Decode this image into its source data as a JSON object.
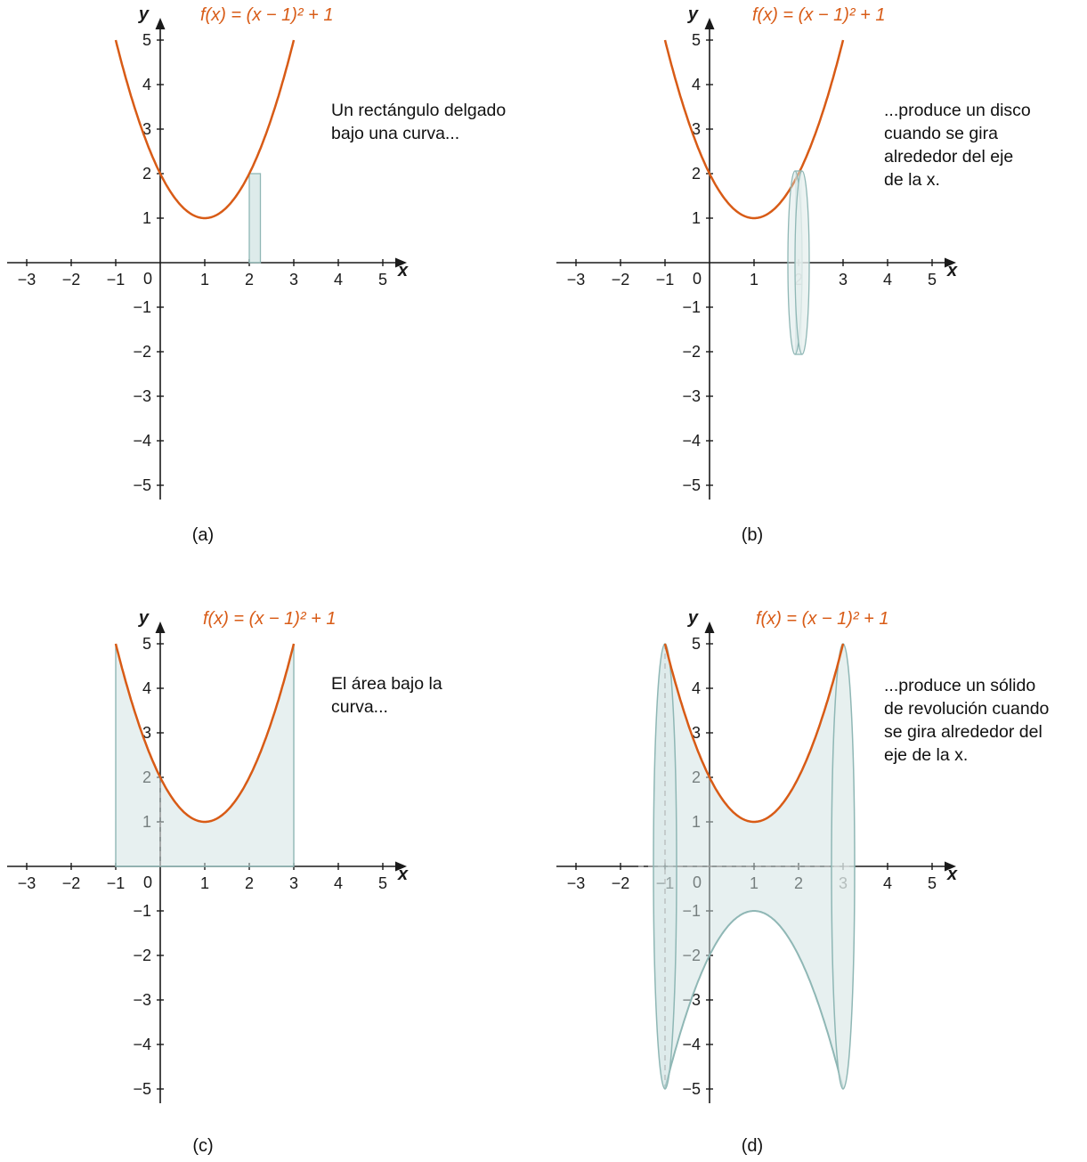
{
  "colors": {
    "curve": "#d85b16",
    "region_fill": "#cfe2e1",
    "region_stroke": "#8fb7b5",
    "disk_face": "#e7f0ef",
    "axis": "#1a1a1a",
    "dashed": "#a8a8a8",
    "text": "#1a1a1a"
  },
  "chart_data": [
    {
      "type": "line",
      "caption": "(a)",
      "title": "f(x) = (x − 1)² + 1",
      "annotation": "Un rectángulo delgado\nbajo una curva...",
      "function": {
        "expression": "f(x) = (x − 1)² + 1",
        "vertex_h": 1,
        "vertex_k": 1,
        "domain": [
          -1,
          3
        ]
      },
      "axes": {
        "xlabel": "x",
        "ylabel": "y",
        "xlim": [
          -3,
          5
        ],
        "ylim": [
          -5,
          5
        ],
        "xticks": [
          -3,
          -2,
          -1,
          1,
          2,
          3,
          4,
          5
        ],
        "yticks": [
          -5,
          -4,
          -3,
          -2,
          -1,
          1,
          2,
          3,
          4,
          5
        ]
      },
      "elements": {
        "rect_slice": {
          "x": 2,
          "width": 0.25,
          "y0": 0,
          "y1": 2
        }
      }
    },
    {
      "type": "line",
      "caption": "(b)",
      "title": "f(x) = (x − 1)² + 1",
      "annotation": "...produce un disco\ncuando se gira\nalrededor del eje\nde la x.",
      "function": {
        "expression": "f(x) = (x − 1)² + 1",
        "vertex_h": 1,
        "vertex_k": 1,
        "domain": [
          -1,
          3
        ]
      },
      "axes": {
        "xlabel": "x",
        "ylabel": "y",
        "xlim": [
          -3,
          5
        ],
        "ylim": [
          -5,
          5
        ],
        "xticks": [
          -3,
          -2,
          -1,
          1,
          2,
          3,
          4,
          5
        ],
        "yticks": [
          -5,
          -4,
          -3,
          -2,
          -1,
          1,
          2,
          3,
          4,
          5
        ]
      },
      "elements": {
        "disk": {
          "x": 2,
          "radius": 2
        }
      }
    },
    {
      "type": "line",
      "caption": "(c)",
      "title": "f(x) = (x − 1)² + 1",
      "annotation": "El área bajo la\ncurva...",
      "function": {
        "expression": "f(x) = (x − 1)² + 1",
        "vertex_h": 1,
        "vertex_k": 1,
        "domain": [
          -1,
          3
        ]
      },
      "axes": {
        "xlabel": "x",
        "ylabel": "y",
        "xlim": [
          -3,
          5
        ],
        "ylim": [
          -5,
          5
        ],
        "xticks": [
          -3,
          -2,
          -1,
          1,
          2,
          3,
          4,
          5
        ],
        "yticks": [
          -5,
          -4,
          -3,
          -2,
          -1,
          1,
          2,
          3,
          4,
          5
        ]
      },
      "elements": {
        "area": {
          "from": -1,
          "to": 3
        },
        "dashed_vertical": {
          "x": 0,
          "y0": 0,
          "y1": 2
        }
      }
    },
    {
      "type": "line",
      "caption": "(d)",
      "title": "f(x) = (x − 1)² + 1",
      "annotation": "...produce un sólido\nde revolución cuando\nse gira alrededor del\neje de la x.",
      "function": {
        "expression": "f(x) = (x − 1)² + 1",
        "vertex_h": 1,
        "vertex_k": 1,
        "domain": [
          -1,
          3
        ]
      },
      "axes": {
        "xlabel": "x",
        "ylabel": "y",
        "xlim": [
          -3,
          5
        ],
        "ylim": [
          -5,
          5
        ],
        "xticks": [
          -3,
          -2,
          -1,
          1,
          2,
          3,
          4,
          5
        ],
        "yticks": [
          -5,
          -4,
          -3,
          -2,
          -1,
          1,
          2,
          3,
          4,
          5
        ]
      },
      "elements": {
        "solid": {
          "from": -1,
          "to": 3,
          "end_radius": 5
        },
        "dashed_vertical": {
          "x": -1,
          "y0": 5,
          "y1": -5
        },
        "dashed_horizontal": {
          "y": 0,
          "x0": -1.6,
          "x1": 3.25
        }
      }
    }
  ]
}
